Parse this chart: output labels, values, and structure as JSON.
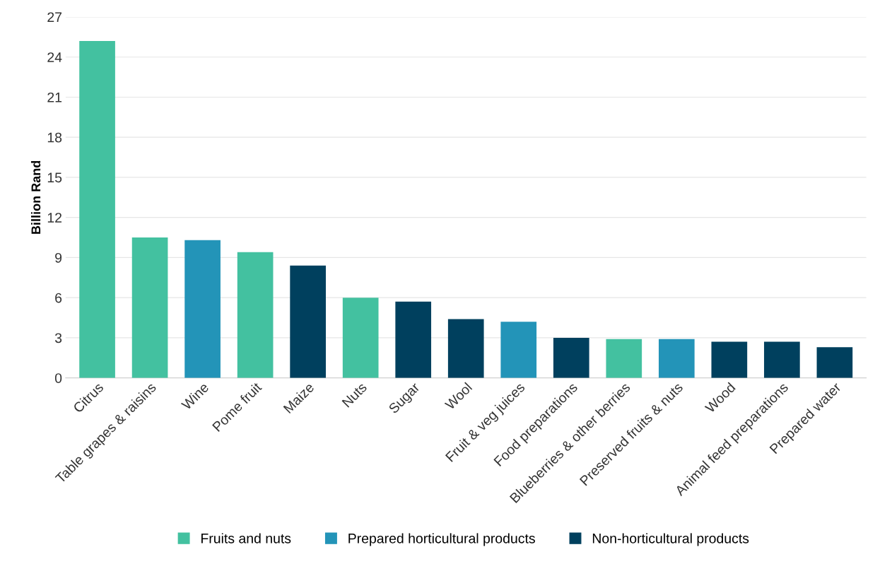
{
  "chart_data": {
    "type": "bar",
    "ylabel": "Billion Rand",
    "categories": [
      "Citrus",
      "Table grapes & raisins",
      "Wine",
      "Pome fruit",
      "Maize",
      "Nuts",
      "Sugar",
      "Wool",
      "Fruit & veg juices",
      "Food preparations",
      "Blueberries & other berries",
      "Preserved fruits & nuts",
      "Wood",
      "Animal feed preparations",
      "Prepared water"
    ],
    "series": [
      {
        "name": "Fruits and nuts",
        "color": "#43c1a0",
        "values": [
          25.2,
          10.5,
          null,
          9.4,
          null,
          6.0,
          null,
          null,
          null,
          null,
          2.9,
          null,
          null,
          null,
          null
        ]
      },
      {
        "name": "Prepared horticultural products",
        "color": "#2394b8",
        "values": [
          null,
          null,
          10.3,
          null,
          null,
          null,
          null,
          null,
          4.2,
          null,
          null,
          2.9,
          null,
          null,
          null
        ]
      },
      {
        "name": "Non-horticultural products",
        "color": "#00405e",
        "values": [
          null,
          null,
          null,
          null,
          8.4,
          null,
          5.7,
          4.4,
          null,
          3.0,
          null,
          null,
          2.7,
          2.7,
          2.3
        ]
      }
    ],
    "ylim": [
      0,
      27
    ],
    "yticks": [
      0,
      3,
      6,
      9,
      12,
      15,
      18,
      21,
      24,
      27
    ],
    "grid": "y",
    "legend": "bottom"
  }
}
